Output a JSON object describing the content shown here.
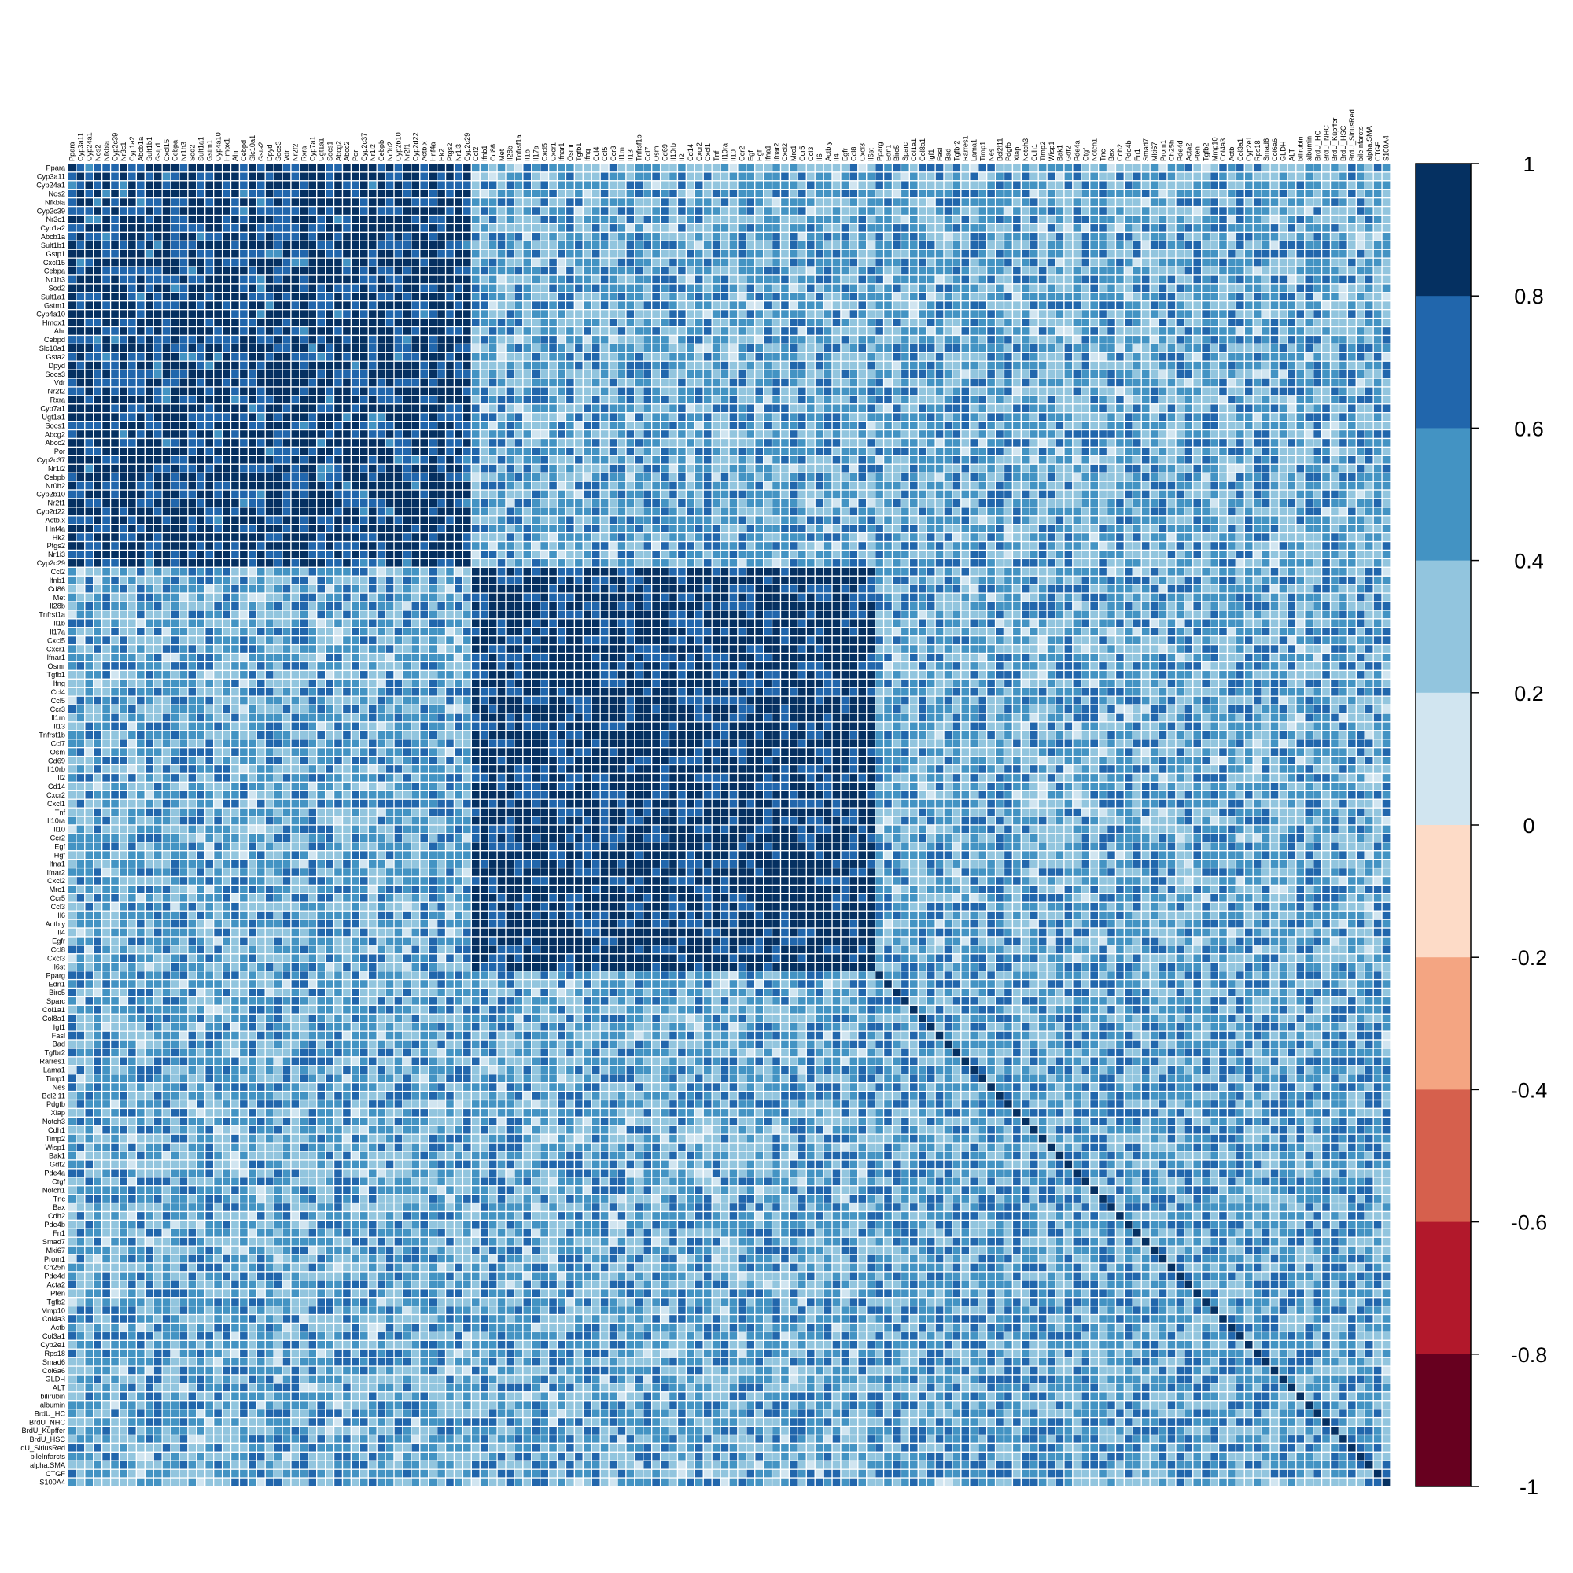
{
  "chart_data": {
    "type": "heatmap",
    "title": "",
    "xlabel": "",
    "ylabel": "",
    "grid": true,
    "labels": [
      "Ppara",
      "Cyp3a11",
      "Cyp24a1",
      "Nos2",
      "Nfkbia",
      "Cyp2c39",
      "Nr3c1",
      "Cyp1a2",
      "Abcb1a",
      "Sult1b1",
      "Gstp1",
      "Cxcl15",
      "Cebpa",
      "Nr1h3",
      "Sod2",
      "Sult1a1",
      "Gstm1",
      "Cyp4a10",
      "Hmox1",
      "Ahr",
      "Cebpd",
      "Slc10a1",
      "Gsta2",
      "Dpyd",
      "Socs3",
      "Vdr",
      "Nr2f2",
      "Rxra",
      "Cyp7a1",
      "Ugt1a1",
      "Socs1",
      "Abcg2",
      "Abcc2",
      "Por",
      "Cyp2c37",
      "Nr1i2",
      "Cebpb",
      "Nr0b2",
      "Cyp2b10",
      "Nr2f1",
      "Cyp2d22",
      "Actb.x",
      "Hnf4a",
      "Hk2",
      "Ptgs2",
      "Nr1i3",
      "Cyp2c29",
      "Ccl2",
      "Ifnb1",
      "Cd86",
      "Met",
      "Il28b",
      "Tnfrsf1a",
      "Il1b",
      "Il17a",
      "Cxcl5",
      "Cxcr1",
      "Ifnar1",
      "Osmr",
      "Tgfb1",
      "Ifng",
      "Ccl4",
      "Ccl5",
      "Ccr3",
      "Il1rn",
      "Il13",
      "Tnfrsf1b",
      "Ccl7",
      "Osm",
      "Cd69",
      "Il10rb",
      "Il2",
      "Cd14",
      "Cxcr2",
      "Cxcl1",
      "Tnf",
      "Il10ra",
      "Il10",
      "Ccr2",
      "Egf",
      "Hgf",
      "Ifna1",
      "Ifnar2",
      "Cxcl2",
      "Mrc1",
      "Ccr5",
      "Ccl3",
      "Il6",
      "Actb.y",
      "Il4",
      "Egfr",
      "Ccl8",
      "Cxcl3",
      "Il6st",
      "Pparg",
      "Edn1",
      "Birc5",
      "Sparc",
      "Col1a1",
      "Col8a1",
      "Igf1",
      "Fasl",
      "Bad",
      "Tgfbr2",
      "Rarres1",
      "Lama1",
      "Timp1",
      "Nes",
      "Bcl2l11",
      "Pdgfb",
      "Xiap",
      "Notch3",
      "Cdh1",
      "Timp2",
      "Wisp1",
      "Bak1",
      "Gdf2",
      "Pde4a",
      "Ctgf",
      "Notch1",
      "Tnc",
      "Bax",
      "Cdh2",
      "Pde4b",
      "Fn1",
      "Smad7",
      "Mki67",
      "Prom1",
      "Ch25h",
      "Pde4d",
      "Acta2",
      "Pten",
      "Tgfb2",
      "Mmp10",
      "Col4a3",
      "Actb",
      "Col3a1",
      "Cyp2e1",
      "Rps18",
      "Smad6",
      "Col6a6",
      "GLDH",
      "ALT",
      "bilirubin",
      "albumin",
      "BrdU_HC",
      "BrdU_NHC",
      "BrdU_Küpffer",
      "BrdU_HSC",
      "BrdU_SiriusRed",
      "bileInfarcts",
      "alpha.SMA",
      "CTGF",
      "S100A4"
    ],
    "row_labels_visible": [
      "Ppara",
      "Cyp3a11",
      "Cyp24a1",
      "Nos2",
      "Nfkbia",
      "Cyp2c39",
      "Nr3c1",
      "Cyp1a2",
      "Abcb1a",
      "Sult1b1",
      "Gstp1",
      "Cxcl15",
      "Cebpa",
      "Nr1h3",
      "Sod2",
      "Sult1a1",
      "Gstm1",
      "Cyp4a10",
      "Hmox1",
      "Ahr",
      "Cebpd",
      "Slc10a1",
      "Gsta2",
      "Dpyd",
      "Socs3",
      "Vdr",
      "Nr2f2",
      "Rxra",
      "Cyp7a1",
      "Ugt1a1",
      "Socs1",
      "Abcg2",
      "Abcc2",
      "Por",
      "Cyp2c37",
      "Nr1i2",
      "Cebpb",
      "Nr0b2",
      "Cyp2b10",
      "Nr2f1",
      "Cyp2d22",
      "Actb.x",
      "Hnf4a",
      "Hk2",
      "Ptgs2",
      "Nr1i3",
      "Cyp2c29",
      "Ccl2",
      "Ifnb1",
      "Cd86",
      "Met",
      "Il28b",
      "Tnfrsf1a",
      "Il1b",
      "Il17a",
      "Cxcl5",
      "Cxcr1",
      "Ifnar1",
      "Osmr",
      "Tgfb1",
      "Ifng",
      "Ccl4",
      "Ccl5",
      "Ccr3",
      "Il1rn",
      "Il13",
      "Tnfrsf1b",
      "Ccl7",
      "Osm",
      "Cd69",
      "Il10rb",
      "Il2",
      "Cd14",
      "Cxcr2",
      "Cxcl1",
      "Tnf",
      "Il10ra",
      "Il10",
      "Ccr2",
      "Egf",
      "Hgf",
      "Ifna1",
      "Ifnar2",
      "Cxcl2",
      "Mrc1",
      "Ccr5",
      "Ccl3",
      "Il6",
      "Actb.y",
      "Il4",
      "Egfr",
      "Ccl8",
      "Cxcl3",
      "Il6st",
      "Pparg",
      "Edn1",
      "Birc5",
      "Sparc",
      "Col1a1",
      "Col8a1",
      "Igf1",
      "Fasl",
      "Bad",
      "Tgfbr2",
      "Rarres1",
      "Lama1",
      "Timp1",
      "Nes",
      "Bcl2l11",
      "Pdgfb",
      "Xiap",
      "Notch3",
      "Cdh1",
      "Timp2",
      "Wisp1",
      "Bak1",
      "Gdf2",
      "Pde4a",
      "Ctgf",
      "Notch1",
      "Tnc",
      "Bax",
      "Cdh2",
      "Pde4b",
      "Fn1",
      "Smad7",
      "Mki67",
      "Prom1",
      "Ch25h",
      "Pde4d",
      "Acta2",
      "Pten",
      "Tgfb2",
      "Mmp10",
      "Col4a3",
      "Actb",
      "Col3a1",
      "Cyp2e1",
      "Rps18",
      "Smad6",
      "Col6a6",
      "GLDH",
      "ALT",
      "bilirubin",
      "albumin",
      "BrdU_HC",
      "BrdU_NHC",
      "BrdU_Küpffer",
      "BrdU_HSC",
      "dU_SiriusRed",
      "bileInfarcts",
      "alpha.SMA",
      "CTGF",
      "S100A4"
    ],
    "blocks": [
      {
        "from": 0,
        "to": 46,
        "within_value": 0.85
      },
      {
        "from": 47,
        "to": 93,
        "within_value": 0.9
      },
      {
        "from": 94,
        "to": 152,
        "within_value": 0.5
      }
    ],
    "between_block_value": 0.45,
    "diagonal_value": 1,
    "zlim": [
      -1,
      1
    ],
    "colorbar": {
      "ticks": [
        "1",
        "0.8",
        "0.6",
        "0.4",
        "0.2",
        "0",
        "-0.2",
        "-0.4",
        "-0.6",
        "-0.8",
        "-1"
      ],
      "bins": [
        {
          "min": 0.8,
          "max": 1.0,
          "color": "#053061"
        },
        {
          "min": 0.6,
          "max": 0.8,
          "color": "#2166ac"
        },
        {
          "min": 0.4,
          "max": 0.6,
          "color": "#4393c3"
        },
        {
          "min": 0.2,
          "max": 0.4,
          "color": "#92c5de"
        },
        {
          "min": 0.0,
          "max": 0.2,
          "color": "#d1e5f0"
        },
        {
          "min": -0.2,
          "max": 0.0,
          "color": "#fddbc7"
        },
        {
          "min": -0.4,
          "max": -0.2,
          "color": "#f4a582"
        },
        {
          "min": -0.6,
          "max": -0.4,
          "color": "#d6604d"
        },
        {
          "min": -0.8,
          "max": -0.6,
          "color": "#b2182b"
        },
        {
          "min": -1.0,
          "max": -0.8,
          "color": "#67001f"
        }
      ]
    },
    "cell_border_color": "#ffffff"
  }
}
